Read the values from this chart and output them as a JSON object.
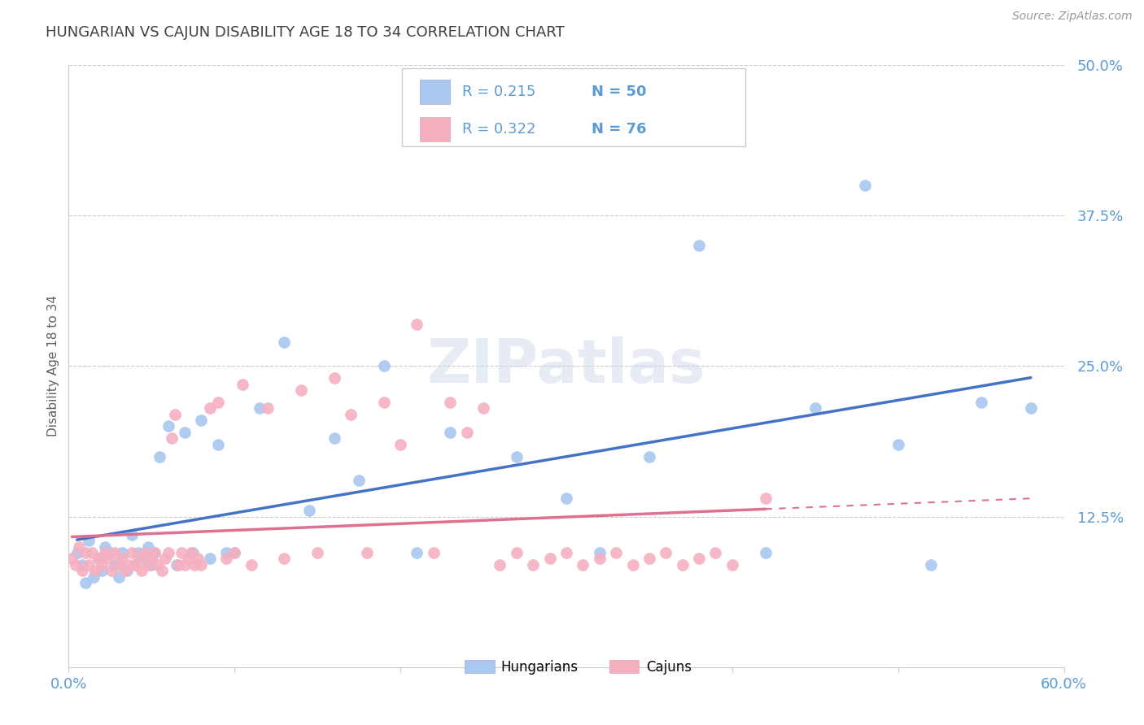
{
  "title": "HUNGARIAN VS CAJUN DISABILITY AGE 18 TO 34 CORRELATION CHART",
  "ylabel": "Disability Age 18 to 34",
  "source": "Source: ZipAtlas.com",
  "watermark": "ZIPatlas",
  "xlim": [
    0.0,
    0.6
  ],
  "ylim": [
    0.0,
    0.5
  ],
  "yticks": [
    0.0,
    0.125,
    0.25,
    0.375,
    0.5
  ],
  "hungarian_R": 0.215,
  "hungarian_N": 50,
  "cajun_R": 0.322,
  "cajun_N": 76,
  "hungarian_color": "#a8c8f0",
  "cajun_color": "#f5b0c0",
  "hungarian_line_color": "#4472c4",
  "cajun_line_color": "#e07090",
  "grid_color": "#cccccc",
  "title_color": "#404040",
  "axis_label_color": "#606060",
  "tick_label_color": "#5b9bd5",
  "legend_text_color": "#5b9bd5",
  "hungarian_x": [
    0.005,
    0.008,
    0.01,
    0.012,
    0.015,
    0.018,
    0.02,
    0.022,
    0.025,
    0.028,
    0.03,
    0.032,
    0.035,
    0.038,
    0.04,
    0.042,
    0.045,
    0.048,
    0.05,
    0.052,
    0.055,
    0.06,
    0.065,
    0.07,
    0.075,
    0.08,
    0.085,
    0.09,
    0.095,
    0.1,
    0.115,
    0.13,
    0.145,
    0.16,
    0.175,
    0.19,
    0.21,
    0.23,
    0.27,
    0.3,
    0.32,
    0.35,
    0.38,
    0.42,
    0.45,
    0.48,
    0.5,
    0.52,
    0.55,
    0.58
  ],
  "hungarian_y": [
    0.095,
    0.085,
    0.07,
    0.105,
    0.075,
    0.09,
    0.08,
    0.1,
    0.095,
    0.085,
    0.075,
    0.095,
    0.08,
    0.11,
    0.085,
    0.095,
    0.09,
    0.1,
    0.085,
    0.095,
    0.175,
    0.2,
    0.085,
    0.195,
    0.095,
    0.205,
    0.09,
    0.185,
    0.095,
    0.095,
    0.215,
    0.27,
    0.13,
    0.19,
    0.155,
    0.25,
    0.095,
    0.195,
    0.175,
    0.14,
    0.095,
    0.175,
    0.35,
    0.095,
    0.215,
    0.4,
    0.185,
    0.085,
    0.22,
    0.215
  ],
  "cajun_x": [
    0.002,
    0.004,
    0.006,
    0.008,
    0.01,
    0.012,
    0.014,
    0.016,
    0.018,
    0.02,
    0.022,
    0.024,
    0.026,
    0.028,
    0.03,
    0.032,
    0.034,
    0.036,
    0.038,
    0.04,
    0.042,
    0.044,
    0.046,
    0.048,
    0.05,
    0.052,
    0.054,
    0.056,
    0.058,
    0.06,
    0.062,
    0.064,
    0.066,
    0.068,
    0.07,
    0.072,
    0.074,
    0.076,
    0.078,
    0.08,
    0.085,
    0.09,
    0.095,
    0.1,
    0.105,
    0.11,
    0.12,
    0.13,
    0.14,
    0.15,
    0.16,
    0.17,
    0.18,
    0.19,
    0.2,
    0.21,
    0.22,
    0.23,
    0.24,
    0.25,
    0.26,
    0.27,
    0.28,
    0.29,
    0.3,
    0.31,
    0.32,
    0.33,
    0.34,
    0.35,
    0.36,
    0.37,
    0.38,
    0.39,
    0.4,
    0.42
  ],
  "cajun_y": [
    0.09,
    0.085,
    0.1,
    0.08,
    0.095,
    0.085,
    0.095,
    0.08,
    0.09,
    0.085,
    0.095,
    0.09,
    0.08,
    0.095,
    0.085,
    0.09,
    0.08,
    0.085,
    0.095,
    0.085,
    0.09,
    0.08,
    0.095,
    0.085,
    0.09,
    0.095,
    0.085,
    0.08,
    0.09,
    0.095,
    0.19,
    0.21,
    0.085,
    0.095,
    0.085,
    0.09,
    0.095,
    0.085,
    0.09,
    0.085,
    0.215,
    0.22,
    0.09,
    0.095,
    0.235,
    0.085,
    0.215,
    0.09,
    0.23,
    0.095,
    0.24,
    0.21,
    0.095,
    0.22,
    0.185,
    0.285,
    0.095,
    0.22,
    0.195,
    0.215,
    0.085,
    0.095,
    0.085,
    0.09,
    0.095,
    0.085,
    0.09,
    0.095,
    0.085,
    0.09,
    0.095,
    0.085,
    0.09,
    0.095,
    0.085,
    0.14
  ]
}
